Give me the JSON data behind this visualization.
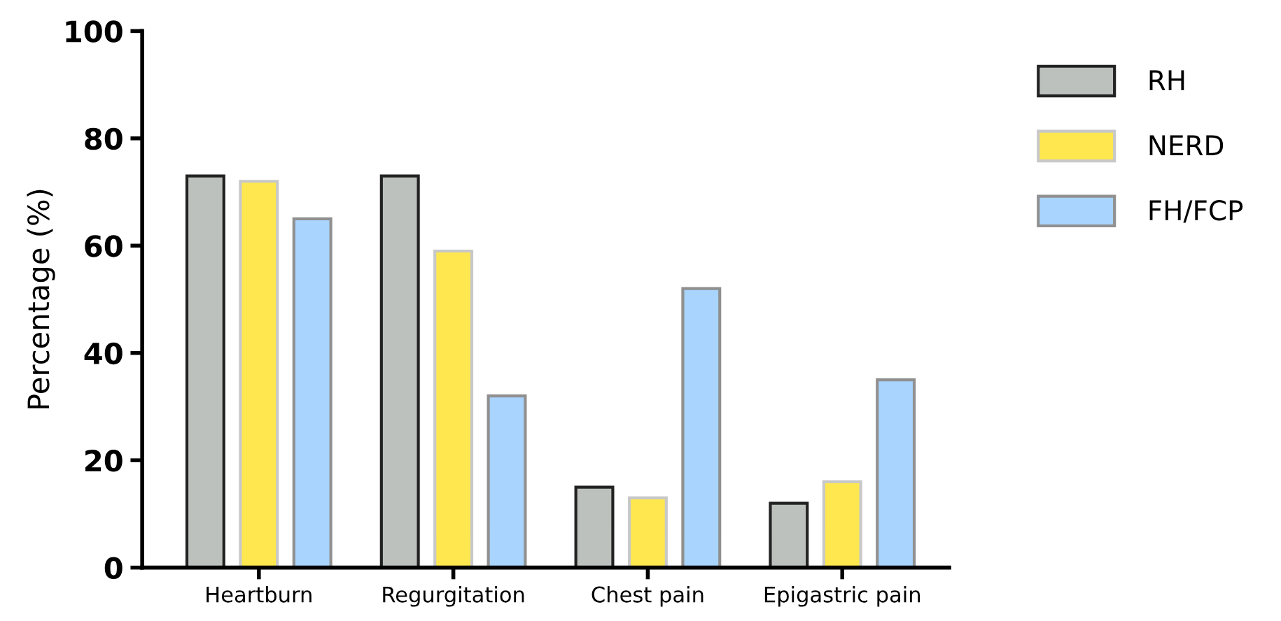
{
  "chart_data": {
    "type": "bar",
    "ylabel": "Percentage (%)",
    "categories": [
      "Heartburn",
      "Regurgitation",
      "Chest pain",
      "Epigastric pain"
    ],
    "series": [
      {
        "name": "RH",
        "color": "#bcc1be",
        "values": [
          73,
          73,
          15,
          12
        ]
      },
      {
        "name": "NERD",
        "color": "#ffe84f",
        "values": [
          72,
          59,
          13,
          16
        ]
      },
      {
        "name": "FH/FCP",
        "color": "#a8d4fd",
        "values": [
          65,
          32,
          52,
          35
        ]
      }
    ],
    "ylim": [
      0,
      100
    ],
    "yticks": [
      0,
      20,
      40,
      60,
      80,
      100
    ],
    "grid": false,
    "legend": "top right"
  }
}
